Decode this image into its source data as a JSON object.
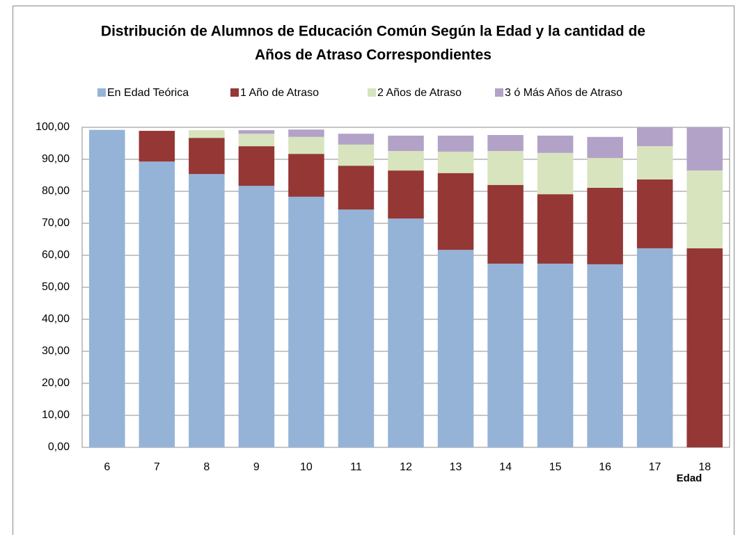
{
  "chart_data": {
    "type": "stacked_bar",
    "title": "Distribución de Alumnos de Educación Común Según la Edad y la cantidad de Años de Atraso Correspondientes",
    "x_label": "Edad",
    "categories": [
      "6",
      "7",
      "8",
      "9",
      "10",
      "11",
      "12",
      "13",
      "14",
      "15",
      "16",
      "17",
      "18"
    ],
    "series": [
      {
        "name": "En Edad Teórica",
        "color": "#95b3d7",
        "values": [
          99.2,
          89.3,
          85.4,
          81.7,
          78.3,
          74.3,
          71.5,
          61.7,
          57.4,
          57.4,
          57.2,
          62.2,
          0
        ]
      },
      {
        "name": "1 Año de Atraso",
        "color": "#953735",
        "values": [
          0,
          9.6,
          11.3,
          12.4,
          13.4,
          13.7,
          15.0,
          24.0,
          24.6,
          21.7,
          23.9,
          21.5,
          62.2
        ]
      },
      {
        "name": "2 Años de Atraso",
        "color": "#d7e4bd",
        "values": [
          0,
          0,
          2.4,
          3.9,
          5.3,
          6.6,
          6.1,
          6.7,
          10.6,
          12.9,
          9.3,
          10.4,
          24.3
        ]
      },
      {
        "name": "3 ó Más Años de Atraso",
        "color": "#b3a2c7",
        "values": [
          0,
          0,
          0,
          1.1,
          2.3,
          3.4,
          4.8,
          5.0,
          5.0,
          5.4,
          6.6,
          5.9,
          13.5
        ]
      }
    ],
    "ylim": [
      0,
      100
    ],
    "yticks": [
      {
        "value": 0,
        "label": "0,00"
      },
      {
        "value": 10,
        "label": "10,00"
      },
      {
        "value": 20,
        "label": "20,00"
      },
      {
        "value": 30,
        "label": "30,00"
      },
      {
        "value": 40,
        "label": "40,00"
      },
      {
        "value": 50,
        "label": "50,00"
      },
      {
        "value": 60,
        "label": "60,00"
      },
      {
        "value": 70,
        "label": "70,00"
      },
      {
        "value": 80,
        "label": "80,00"
      },
      {
        "value": 90,
        "label": "90,00"
      },
      {
        "value": 100,
        "label": "100,00"
      }
    ],
    "grid": true,
    "legend": "top"
  }
}
